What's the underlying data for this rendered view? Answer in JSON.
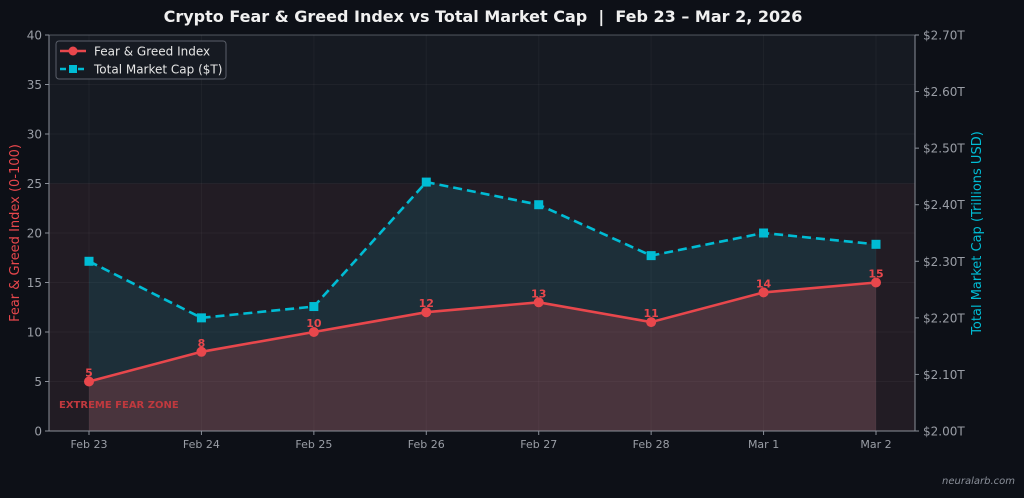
{
  "chart_data": {
    "type": "line",
    "title": "Crypto Fear & Greed Index vs Total Market Cap  |  Feb 23 – Mar 2, 2026",
    "categories": [
      "Feb 23",
      "Feb 24",
      "Feb 25",
      "Feb 26",
      "Feb 27",
      "Feb 28",
      "Mar 1",
      "Mar 2"
    ],
    "ylabel": "Fear & Greed Index (0-100)",
    "y2label": "Total Market Cap (Trillions USD)",
    "ylim": [
      0,
      40
    ],
    "y2lim": [
      2.0,
      2.7
    ],
    "yticks": [
      "0",
      "5",
      "10",
      "15",
      "20",
      "25",
      "30",
      "35",
      "40"
    ],
    "y2ticks": [
      "$2.00T",
      "$2.10T",
      "$2.20T",
      "$2.30T",
      "$2.40T",
      "$2.50T",
      "$2.60T",
      "$2.70T"
    ],
    "grid": true,
    "legend_position": "top-left",
    "series": [
      {
        "name": "Fear & Greed Index",
        "axis": "left",
        "color": "#e8474c",
        "marker": "circle",
        "style": "solid",
        "values": [
          5,
          8,
          10,
          12,
          13,
          11,
          14,
          15
        ],
        "labels": [
          "5",
          "8",
          "10",
          "12",
          "13",
          "11",
          "14",
          "15"
        ]
      },
      {
        "name": "Total Market Cap ($T)",
        "axis": "right",
        "color": "#00bcd4",
        "marker": "square",
        "style": "dashed",
        "values": [
          2.3,
          2.2,
          2.22,
          2.44,
          2.4,
          2.31,
          2.35,
          2.33
        ]
      }
    ],
    "zone": {
      "label": "EXTREME FEAR ZONE",
      "range": [
        0,
        25
      ],
      "color": "#e8474c"
    }
  },
  "watermark": "neuralarb.com"
}
